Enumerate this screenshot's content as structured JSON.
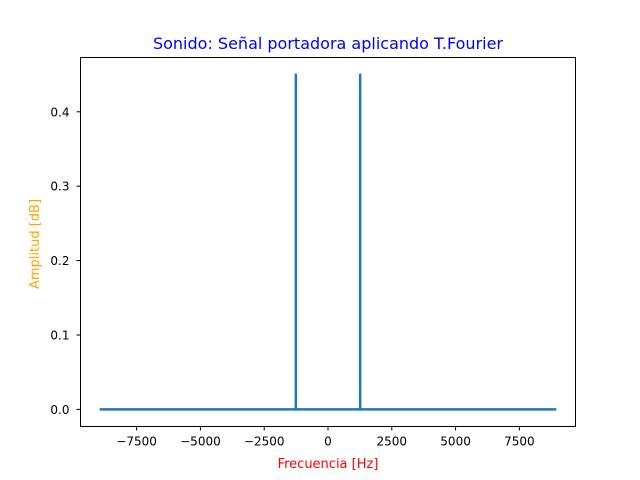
{
  "chart_data": {
    "type": "line",
    "title": "Sonido: Señal portadora aplicando T.Fourier",
    "xlabel": "Frecuencia [Hz]",
    "ylabel": "Amplitud [dB]",
    "xlim": [
      -9700,
      9700
    ],
    "ylim": [
      -0.023,
      0.473
    ],
    "xticks": [
      -7500,
      -5000,
      -2500,
      0,
      2500,
      5000,
      7500
    ],
    "xtick_labels": [
      "−7500",
      "−5000",
      "−2500",
      "0",
      "2500",
      "5000",
      "7500"
    ],
    "yticks": [
      0.0,
      0.1,
      0.2,
      0.3,
      0.4
    ],
    "ytick_labels": [
      "0.0",
      "0.1",
      "0.2",
      "0.3",
      "0.4"
    ],
    "grid": false,
    "series": [
      {
        "x": [
          -8950,
          -1260,
          -1260,
          -1260,
          1260,
          1260,
          1260,
          8950
        ],
        "y": [
          0,
          0,
          0.45,
          0,
          0,
          0.45,
          0,
          0
        ]
      }
    ]
  },
  "colors": {
    "title": "#0000ff",
    "xlabel": "#ff0000",
    "ylabel": "#ffa500",
    "line": "#1f77b4",
    "axes": "#000000"
  }
}
